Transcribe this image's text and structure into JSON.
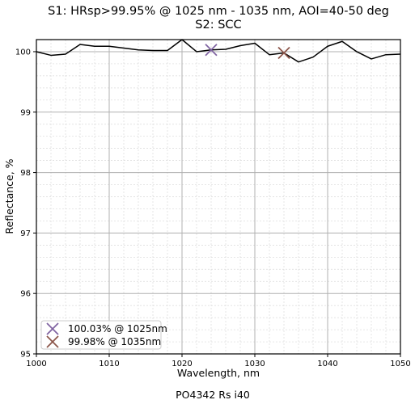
{
  "chart_data": {
    "type": "line",
    "title": "S1: HRsp>99.95% @ 1025 nm - 1035 nm, AOI=40-50 deg",
    "subtitle": "S2: SCC",
    "xlabel": "Wavelength, nm",
    "ylabel": "Reflectance, %",
    "footer": "PO4342 Rs i40",
    "xlim": [
      1000,
      1050
    ],
    "ylim": [
      95,
      100.2
    ],
    "xticks": [
      1000,
      1010,
      1020,
      1030,
      1040,
      1050
    ],
    "yticks": [
      95,
      96,
      97,
      98,
      99,
      100
    ],
    "xtick_labels": [
      "1000",
      "1010",
      "1020",
      "1030",
      "1040",
      "1050"
    ],
    "ytick_labels": [
      "95",
      "96",
      "97",
      "98",
      "99",
      "100"
    ],
    "grid": true,
    "minor_grid": true,
    "legend_position": "lower-left",
    "line_color": "#000000",
    "series": [
      {
        "x": [
          1000,
          1002,
          1004,
          1006,
          1008,
          1010,
          1012,
          1014,
          1016,
          1018,
          1020,
          1022,
          1024,
          1026,
          1028,
          1030,
          1032,
          1034,
          1036,
          1038,
          1040,
          1042,
          1044,
          1046,
          1048,
          1050
        ],
        "y": [
          100.0,
          99.94,
          99.96,
          100.12,
          100.09,
          100.09,
          100.06,
          100.03,
          100.02,
          100.02,
          100.2,
          100.0,
          100.03,
          100.04,
          100.1,
          100.14,
          99.95,
          99.98,
          99.83,
          99.91,
          100.09,
          100.17,
          100.0,
          99.88,
          99.95,
          99.96
        ]
      }
    ],
    "markers": [
      {
        "x": 1024,
        "y": 100.03,
        "label": "100.03% @ 1025nm",
        "color": "#8064a2"
      },
      {
        "x": 1034,
        "y": 99.98,
        "label": "99.98% @ 1035nm",
        "color": "#8c564b"
      }
    ]
  }
}
